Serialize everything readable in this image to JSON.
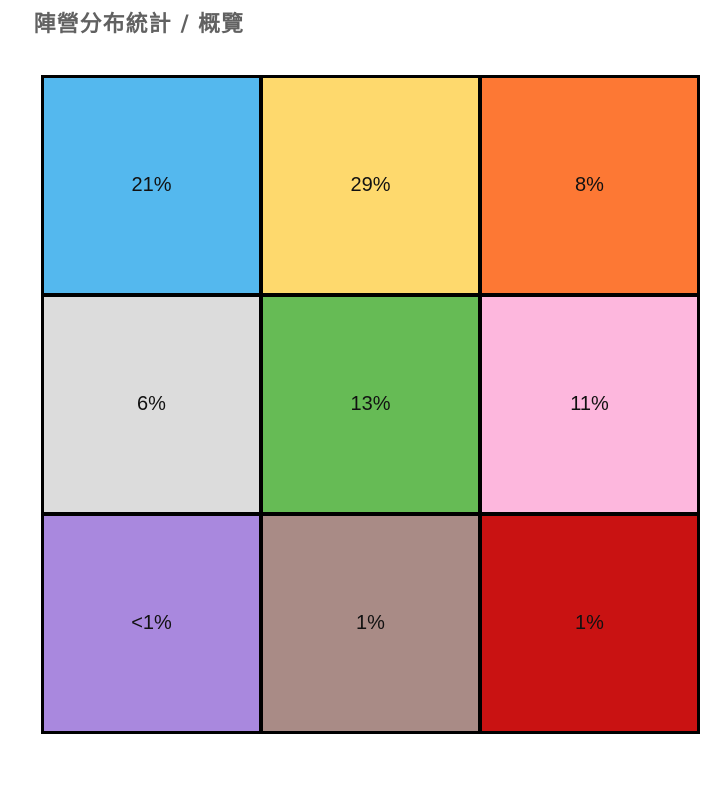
{
  "page": {
    "title": "陣營分布統計 / 概覽"
  },
  "grid": {
    "cells": [
      {
        "label": "21%",
        "color": "#54b8ee"
      },
      {
        "label": "29%",
        "color": "#fed96d"
      },
      {
        "label": "8%",
        "color": "#fd7834"
      },
      {
        "label": "6%",
        "color": "#dcdcdc"
      },
      {
        "label": "13%",
        "color": "#66bb55"
      },
      {
        "label": "11%",
        "color": "#fdb7dd"
      },
      {
        "label": "<1%",
        "color": "#a988de"
      },
      {
        "label": "1%",
        "color": "#a98b86"
      },
      {
        "label": "1%",
        "color": "#c91212"
      }
    ]
  }
}
